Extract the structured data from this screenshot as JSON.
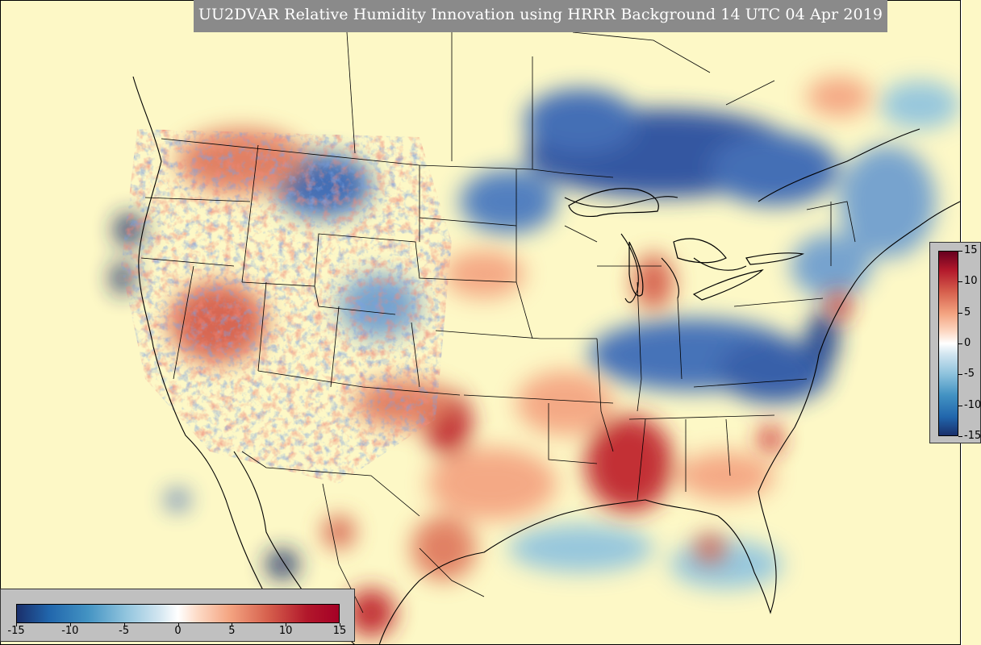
{
  "title": "UU2DVAR Relative Humidity Innovation using HRRR Background 14 UTC 04 Apr 2019",
  "colorbar_vertical": {
    "ticks": [
      {
        "label": "15",
        "value": 15
      },
      {
        "label": "10",
        "value": 10
      },
      {
        "label": "5",
        "value": 5
      },
      {
        "label": "0",
        "value": 0
      },
      {
        "label": "-5",
        "value": -5
      },
      {
        "label": "-10",
        "value": -10
      },
      {
        "label": "-15",
        "value": -15
      }
    ]
  },
  "colorbar_horizontal": {
    "ticks": [
      {
        "label": "-15",
        "value": -15
      },
      {
        "label": "-10",
        "value": -10
      },
      {
        "label": "-5",
        "value": -5
      },
      {
        "label": "0",
        "value": 0
      },
      {
        "label": "5",
        "value": 5
      },
      {
        "label": "10",
        "value": 10
      },
      {
        "label": "15",
        "value": 15
      }
    ]
  },
  "colors": {
    "background": "#fdf8c6",
    "dry_strong": "#1a2f6b",
    "dry": "#4393c3",
    "neutral": "#fdf8c6",
    "moist": "#f4a582",
    "moist_strong": "#a50026",
    "title_bg": "#8a8a8a"
  }
}
